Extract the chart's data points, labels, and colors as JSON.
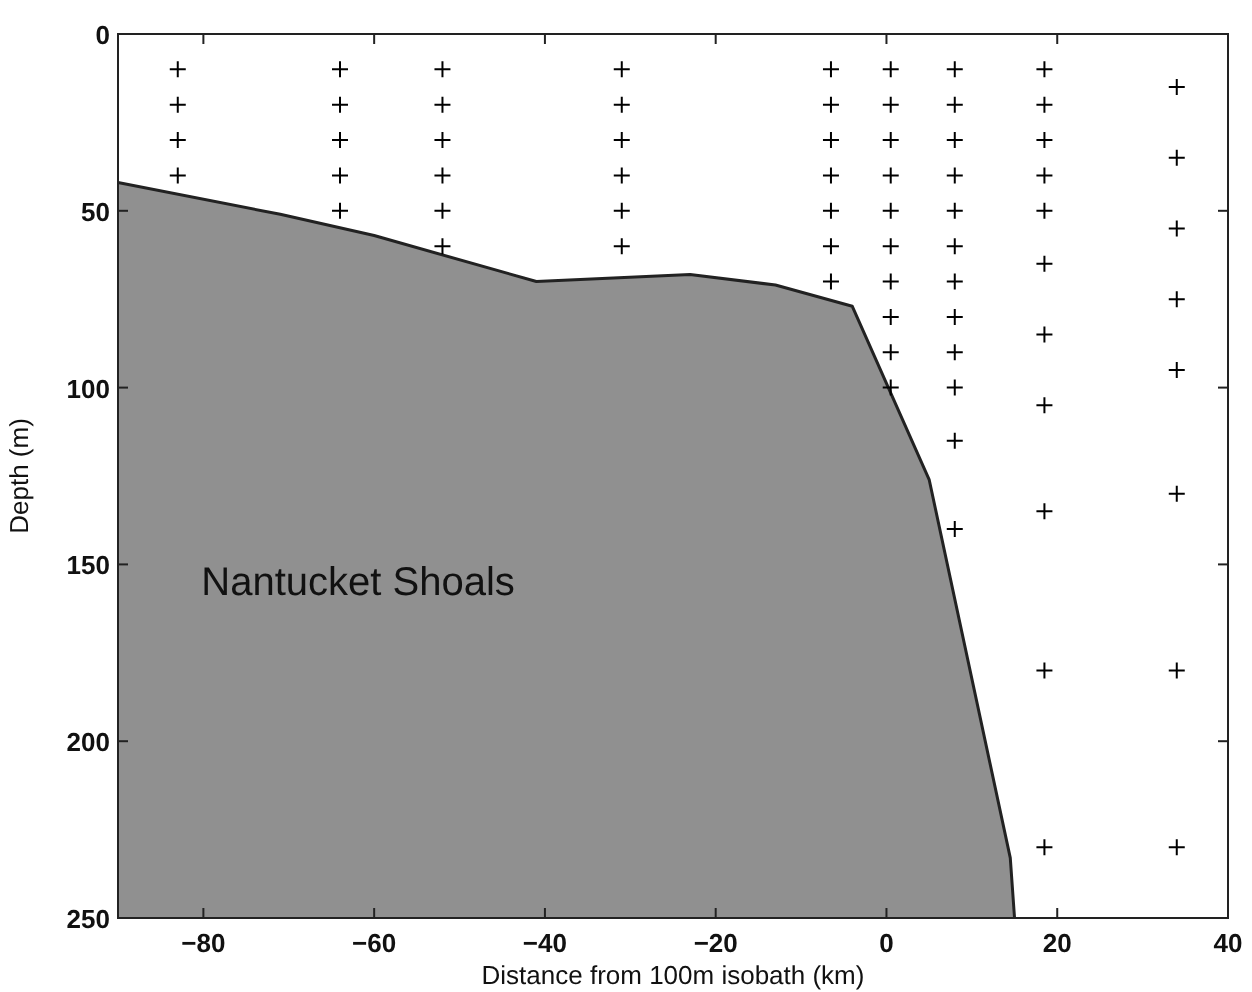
{
  "chart_data": {
    "type": "scatter",
    "xlabel": "Distance from 100m isobath (km)",
    "ylabel": "Depth (m)",
    "xlim": [
      -90,
      40
    ],
    "ylim": [
      250,
      0
    ],
    "xticks": [
      -80,
      -60,
      -40,
      -20,
      0,
      20,
      40
    ],
    "yticks": [
      0,
      50,
      100,
      150,
      200,
      250
    ],
    "grid": false,
    "legend": false,
    "annotations": [
      "Nantucket Shoals"
    ],
    "series": [
      {
        "type": "line",
        "color": "#222222",
        "x": [
          -90,
          -71,
          -60,
          -41,
          -23,
          -13,
          -4,
          5,
          14.5,
          15
        ],
        "values": [
          42,
          51,
          57,
          70,
          68,
          71,
          77,
          126,
          233,
          250
        ],
        "lower": [
          42,
          51,
          57,
          70,
          68,
          71,
          77,
          126,
          233,
          250
        ],
        "upper": [
          250,
          250,
          250,
          250,
          250,
          250,
          250,
          250,
          250,
          250
        ]
      },
      {
        "marker": "cross",
        "color": "#000000",
        "x": [
          -83,
          -83,
          -83,
          -83,
          -64,
          -64,
          -64,
          -64,
          -64,
          -52,
          -52,
          -52,
          -52,
          -52,
          -52,
          -31,
          -31,
          -31,
          -31,
          -31,
          -31,
          -6.5,
          -6.5,
          -6.5,
          -6.5,
          -6.5,
          -6.5,
          -6.5,
          0.5,
          0.5,
          0.5,
          0.5,
          0.5,
          0.5,
          0.5,
          0.5,
          0.5,
          0.5,
          8,
          8,
          8,
          8,
          8,
          8,
          8,
          8,
          8,
          8,
          8,
          8,
          18.5,
          18.5,
          18.5,
          18.5,
          18.5,
          18.5,
          18.5,
          18.5,
          18.5,
          18.5,
          18.5,
          34,
          34,
          34,
          34,
          34,
          34,
          34,
          34
        ],
        "values": [
          10,
          20,
          30,
          40,
          10,
          20,
          30,
          40,
          50,
          10,
          20,
          30,
          40,
          50,
          60,
          10,
          20,
          30,
          40,
          50,
          60,
          10,
          20,
          30,
          40,
          50,
          60,
          70,
          10,
          20,
          30,
          40,
          50,
          60,
          70,
          80,
          90,
          100,
          10,
          20,
          30,
          40,
          50,
          60,
          70,
          80,
          90,
          100,
          115,
          140,
          10,
          20,
          30,
          40,
          50,
          65,
          85,
          105,
          135,
          180,
          230,
          15,
          35,
          55,
          75,
          95,
          130,
          180,
          230
        ]
      }
    ]
  }
}
